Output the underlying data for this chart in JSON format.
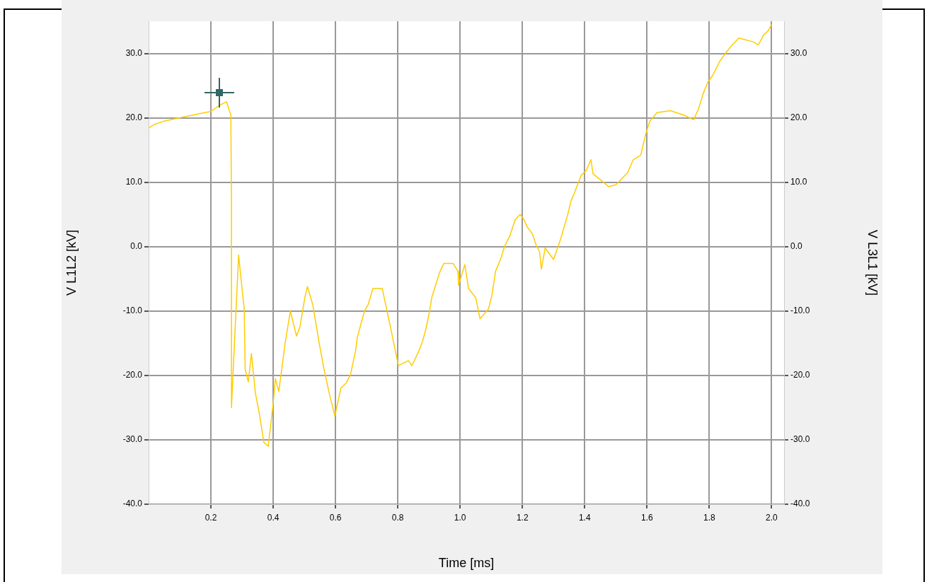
{
  "chart_data": {
    "type": "line",
    "xlabel": "Time [ms]",
    "ylabel": "V L1L2 [kV]",
    "y2label": "V L3L1 [kV]",
    "x": [
      0,
      0.02,
      0.05,
      0.1,
      0.15,
      0.2,
      0.23,
      0.25,
      0.26,
      0.264,
      0.266,
      0.266,
      0.28,
      0.289,
      0.296,
      0.307,
      0.31,
      0.32,
      0.33,
      0.343,
      0.355,
      0.37,
      0.384,
      0.4,
      0.407,
      0.418,
      0.438,
      0.455,
      0.475,
      0.486,
      0.502,
      0.51,
      0.527,
      0.548,
      0.563,
      0.58,
      0.598,
      0.617,
      0.634,
      0.648,
      0.664,
      0.67,
      0.693,
      0.705,
      0.72,
      0.75,
      0.761,
      0.777,
      0.791,
      0.802,
      0.834,
      0.845,
      0.864,
      0.879,
      0.891,
      0.902,
      0.909,
      0.925,
      0.936,
      0.948,
      0.977,
      0.993,
      0.995,
      1.015,
      1.027,
      1.05,
      1.064,
      1.091,
      1.102,
      1.114,
      1.132,
      1.143,
      1.159,
      1.177,
      1.193,
      1.205,
      1.216,
      1.232,
      1.245,
      1.255,
      1.261,
      1.273,
      1.3,
      1.323,
      1.345,
      1.356,
      1.366,
      1.377,
      1.389,
      1.405,
      1.42,
      1.427,
      1.455,
      1.477,
      1.5,
      1.538,
      1.556,
      1.58,
      1.595,
      1.609,
      1.632,
      1.675,
      1.72,
      1.75,
      1.766,
      1.78,
      1.795,
      1.811,
      1.834,
      1.85,
      1.873,
      1.895,
      1.918,
      1.941,
      1.957,
      1.975,
      1.989,
      2.0
    ],
    "series": [
      {
        "color": "#ffcc00",
        "values": [
          18.4,
          19,
          19.5,
          20,
          20.5,
          21,
          22,
          22.5,
          21,
          20.5,
          7.5,
          -25,
          -10.5,
          -1.3,
          -4.7,
          -9.7,
          -19,
          -21,
          -16.6,
          -22.8,
          -25.8,
          -30.4,
          -31,
          -24.3,
          -20.5,
          -22.5,
          -15.1,
          -10,
          -13.9,
          -12.4,
          -7.8,
          -6.2,
          -9,
          -15.1,
          -19,
          -22.8,
          -26.3,
          -22,
          -21.2,
          -19.9,
          -16.3,
          -14.1,
          -10,
          -9,
          -6.5,
          -6.5,
          -9,
          -12.6,
          -15.9,
          -18.5,
          -17.7,
          -18.5,
          -16.6,
          -14.8,
          -12.6,
          -10,
          -7.9,
          -5.4,
          -3.8,
          -2.6,
          -2.6,
          -3.8,
          -6,
          -2.8,
          -6.5,
          -7.9,
          -11.2,
          -9.7,
          -7.6,
          -3.8,
          -1.7,
          0.1,
          1.6,
          4.2,
          5,
          4.2,
          3,
          2,
          0.1,
          -0.8,
          -3.5,
          -0.2,
          -2,
          1.2,
          4.9,
          7.1,
          8.2,
          9.6,
          11.1,
          11.8,
          13.5,
          11.3,
          10.2,
          9.3,
          9.6,
          11.5,
          13.5,
          14.2,
          17.3,
          19.5,
          20.8,
          21.1,
          20.4,
          19.7,
          21.5,
          23.7,
          25.5,
          26.6,
          28.8,
          29.9,
          31.3,
          32.4,
          32.1,
          31.8,
          31.3,
          32.9,
          33.5,
          34.5
        ]
      }
    ],
    "xlim": [
      0,
      2.04
    ],
    "xticks": [
      0.2,
      0.4,
      0.6,
      0.8,
      {
        "value": 1,
        "label": "1.0"
      },
      1.2,
      1.4,
      1.6,
      1.8,
      {
        "value": 2,
        "label": "2.0"
      }
    ],
    "ylim": [
      -40,
      35
    ],
    "yticks": [
      {
        "value": -40,
        "label": "-40.0"
      },
      {
        "value": -30,
        "label": "-30.0"
      },
      {
        "value": -20,
        "label": "-20.0"
      },
      {
        "value": -10,
        "label": "-10.0"
      },
      {
        "value": 0,
        "label": "0.0"
      },
      {
        "value": 10,
        "label": "10.0"
      },
      {
        "value": 20,
        "label": "20.0"
      },
      {
        "value": 30,
        "label": "30.0"
      }
    ],
    "y2lim": [
      -40,
      35
    ],
    "y2ticks": [
      {
        "value": -40,
        "label": "-40.0"
      },
      {
        "value": -30,
        "label": "-30.0"
      },
      {
        "value": -20,
        "label": "-20.0"
      },
      {
        "value": -10,
        "label": "-10.0"
      },
      {
        "value": 0,
        "label": "0.0"
      },
      {
        "value": 10,
        "label": "10.0"
      },
      {
        "value": 20,
        "label": "20.0"
      },
      {
        "value": 30,
        "label": "30.0"
      }
    ],
    "grid": true,
    "marker": "none",
    "line_style": "solid"
  }
}
